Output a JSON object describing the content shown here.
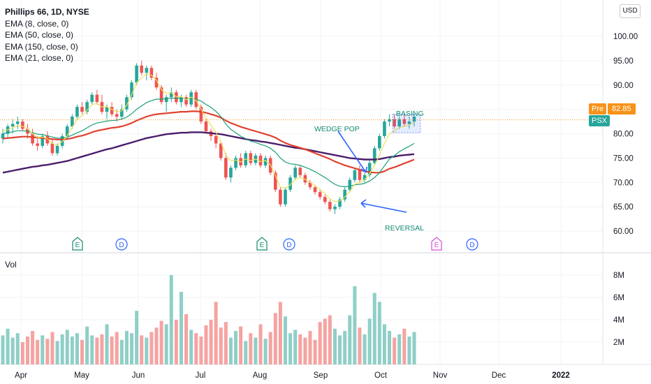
{
  "legend": {
    "title": "Phillips 66, 1D, NYSE",
    "indicators": [
      "EMA (8, close, 0)",
      "EMA (50, close, 0)",
      "EMA (150, close, 0)",
      "EMA (21, close, 0)"
    ]
  },
  "currency_button": "USD",
  "volume_label": "Vol",
  "price_tags": {
    "pre_label": "Pre",
    "pre_value": "82.85",
    "symbol": "PSX"
  },
  "colors": {
    "up": "#26a69a",
    "down": "#ef5350",
    "ema8": "#e9e25b",
    "ema21": "#1b9e77",
    "ema50": "#e0402f",
    "ema150": "#4b1d6b",
    "pre": "#f7931a",
    "symbol_tag": "#26a69a",
    "annotation_blue": "#2962ff"
  },
  "chart_data": {
    "type": "candlestick",
    "title": "Phillips 66, 1D, NYSE",
    "price_axis": {
      "ticks": [
        "100.00",
        "95.00",
        "90.00",
        "85.00",
        "80.00",
        "75.00",
        "70.00",
        "65.00",
        "60.00"
      ],
      "range": [
        57.5,
        102
      ]
    },
    "volume_axis": {
      "ticks": [
        "8M",
        "6M",
        "4M",
        "2M"
      ],
      "range": [
        0,
        9
      ]
    },
    "x_axis_labels": [
      "Apr",
      "May",
      "Jun",
      "Jul",
      "Aug",
      "Sep",
      "Oct",
      "Nov",
      "Dec",
      "2022"
    ],
    "grid": true,
    "annotations": [
      "BASING",
      "WEDGE POP",
      "REVERSAL"
    ],
    "event_markers": [
      "E",
      "D",
      "E",
      "D",
      "E",
      "D"
    ],
    "ohlc": [
      [
        79,
        81,
        78,
        80
      ],
      [
        80,
        82,
        79,
        81.5
      ],
      [
        81.5,
        83,
        80,
        82
      ],
      [
        82,
        83.5,
        81,
        82.5
      ],
      [
        82.5,
        83,
        80.5,
        81
      ],
      [
        81,
        82,
        79,
        80
      ],
      [
        80,
        81,
        77.5,
        78
      ],
      [
        78,
        79.5,
        76.5,
        77.5
      ],
      [
        77.5,
        80,
        77,
        79.5
      ],
      [
        79.5,
        80.5,
        77.5,
        78
      ],
      [
        78,
        79,
        75.5,
        76
      ],
      [
        76,
        78,
        75.5,
        77.5
      ],
      [
        77.5,
        80,
        77,
        79.5
      ],
      [
        79.5,
        82,
        79,
        81.5
      ],
      [
        81.5,
        84,
        81,
        83.5
      ],
      [
        83.5,
        86,
        83,
        85.5
      ],
      [
        85.5,
        86.5,
        84,
        84.5
      ],
      [
        84.5,
        87,
        84,
        86.5
      ],
      [
        86.5,
        88.5,
        86,
        88
      ],
      [
        88,
        89,
        86,
        86.5
      ],
      [
        86.5,
        88,
        84,
        84.5
      ],
      [
        84.5,
        86,
        83,
        85.5
      ],
      [
        85.5,
        86.5,
        83.5,
        84
      ],
      [
        84,
        85,
        82.5,
        83.5
      ],
      [
        83.5,
        86,
        83,
        85
      ],
      [
        85,
        88,
        84.5,
        87.5
      ],
      [
        87.5,
        91,
        87,
        90.5
      ],
      [
        90.5,
        94.5,
        90,
        94
      ],
      [
        94,
        95,
        92,
        92.5
      ],
      [
        92.5,
        94,
        91,
        93.5
      ],
      [
        93.5,
        94,
        91,
        91.5
      ],
      [
        91.5,
        92.5,
        89,
        89.5
      ],
      [
        89.5,
        90,
        86,
        86.5
      ],
      [
        86.5,
        88,
        84.5,
        87.5
      ],
      [
        87.5,
        89.5,
        86.5,
        88.5
      ],
      [
        88.5,
        89,
        86,
        86.5
      ],
      [
        86.5,
        88,
        85.5,
        87.5
      ],
      [
        87.5,
        88,
        85.5,
        86
      ],
      [
        86,
        89,
        85.5,
        88.5
      ],
      [
        88.5,
        89,
        85,
        85.5
      ],
      [
        85.5,
        86,
        82,
        82.5
      ],
      [
        82.5,
        83,
        80,
        80.5
      ],
      [
        80.5,
        81,
        78.5,
        79.5
      ],
      [
        79.5,
        80,
        77,
        78
      ],
      [
        78,
        78.5,
        74.5,
        75
      ],
      [
        75,
        76,
        70.5,
        71
      ],
      [
        71,
        73.5,
        70,
        73
      ],
      [
        73,
        75.5,
        72.5,
        75
      ],
      [
        75,
        76,
        73,
        73.5
      ],
      [
        73.5,
        76.5,
        73,
        76
      ],
      [
        76,
        76.5,
        73.5,
        74
      ],
      [
        74,
        76,
        73.5,
        75.5
      ],
      [
        75.5,
        76,
        73,
        73.5
      ],
      [
        73.5,
        75.5,
        73,
        75
      ],
      [
        75,
        75.5,
        71.5,
        72
      ],
      [
        72,
        72.5,
        68,
        68.5
      ],
      [
        68.5,
        69,
        65,
        65.5
      ],
      [
        65.5,
        69,
        65,
        68.5
      ],
      [
        68.5,
        71.5,
        68,
        71
      ],
      [
        71,
        73.5,
        70.5,
        73
      ],
      [
        73,
        73.5,
        71,
        71.5
      ],
      [
        71.5,
        72,
        69.5,
        70
      ],
      [
        70,
        70.5,
        68.5,
        69
      ],
      [
        69,
        69.5,
        67.5,
        68
      ],
      [
        68,
        68.5,
        66.5,
        67
      ],
      [
        67,
        67.5,
        65.5,
        66
      ],
      [
        66,
        66.5,
        64,
        64.5
      ],
      [
        64.5,
        65.5,
        63.5,
        65
      ],
      [
        65,
        67,
        64.5,
        66.5
      ],
      [
        66.5,
        69,
        66,
        68.5
      ],
      [
        68.5,
        71,
        68,
        70.5
      ],
      [
        70.5,
        73,
        70,
        72.5
      ],
      [
        72.5,
        73.5,
        70,
        70.5
      ],
      [
        70.5,
        72,
        70,
        71.5
      ],
      [
        71.5,
        74.5,
        71,
        74
      ],
      [
        74,
        77.5,
        73.5,
        77
      ],
      [
        77,
        80,
        76.5,
        79.5
      ],
      [
        79.5,
        83,
        79,
        82.5
      ],
      [
        82.5,
        84,
        81.5,
        83
      ],
      [
        83,
        84,
        81,
        81.5
      ],
      [
        81.5,
        83.5,
        81,
        83
      ],
      [
        83,
        84,
        81.5,
        82
      ],
      [
        82,
        83.5,
        81,
        82.5
      ],
      [
        82.5,
        84,
        81.5,
        83.5
      ]
    ],
    "volume_millions": [
      2.6,
      3.2,
      2.4,
      2.8,
      2.0,
      2.5,
      3.0,
      2.2,
      2.6,
      2.3,
      2.9,
      2.1,
      2.7,
      3.1,
      2.5,
      2.8,
      2.2,
      3.4,
      2.6,
      2.4,
      2.7,
      3.6,
      2.5,
      2.9,
      2.2,
      3.0,
      2.8,
      4.8,
      2.6,
      2.4,
      2.9,
      3.3,
      3.9,
      3.6,
      8.0,
      4.0,
      6.5,
      4.5,
      3.1,
      2.8,
      2.5,
      3.5,
      4.0,
      5.6,
      3.3,
      3.8,
      2.4,
      3.0,
      3.4,
      2.1,
      2.8,
      2.4,
      3.6,
      2.3,
      2.9,
      4.6,
      5.6,
      4.3,
      2.8,
      3.1,
      2.7,
      2.4,
      3.0,
      2.2,
      3.8,
      4.1,
      4.4,
      3.2,
      2.6,
      3.0,
      4.4,
      7.0,
      3.3,
      2.7,
      4.1,
      6.4,
      5.6,
      3.6,
      3.0,
      2.4,
      2.7,
      3.2,
      2.5,
      2.9
    ],
    "ema8": [
      80.5,
      80.8,
      81.3,
      81.6,
      81.5,
      81.0,
      80.0,
      79.2,
      79.3,
      79.0,
      78.0,
      77.6,
      78.4,
      79.6,
      81.3,
      83.0,
      83.7,
      84.8,
      86.0,
      86.2,
      85.5,
      85.5,
      85.0,
      84.5,
      84.7,
      85.8,
      88.0,
      90.5,
      91.5,
      92.3,
      92.0,
      91.0,
      89.0,
      88.3,
      88.4,
      87.6,
      87.6,
      87.0,
      87.5,
      86.8,
      85.0,
      83.2,
      81.7,
      80.3,
      78.3,
      75.6,
      74.5,
      74.6,
      74.2,
      74.8,
      74.5,
      74.8,
      74.3,
      74.5,
      73.6,
      71.4,
      69.0,
      68.8,
      69.5,
      70.7,
      71.0,
      70.6,
      70.0,
      69.3,
      68.5,
      67.7,
      66.6,
      66.0,
      66.2,
      67.0,
      68.1,
      69.6,
      70.0,
      70.5,
      71.8,
      73.5,
      75.6,
      78.0,
      80.0,
      80.5,
      81.3,
      81.5,
      81.8,
      82.4
    ],
    "ema21": [
      80,
      80.2,
      80.4,
      80.6,
      80.6,
      80.5,
      80.2,
      79.9,
      79.8,
      79.6,
      79.3,
      79.1,
      79.1,
      79.3,
      79.7,
      80.2,
      80.6,
      81.2,
      81.8,
      82.2,
      82.4,
      82.6,
      82.7,
      82.8,
      83.0,
      83.4,
      84.1,
      85.0,
      85.7,
      86.4,
      86.8,
      87.1,
      87.1,
      87.2,
      87.3,
      87.3,
      87.3,
      87.2,
      87.3,
      87.1,
      86.7,
      86.0,
      85.4,
      84.6,
      83.5,
      82.0,
      80.9,
      80.2,
      79.5,
      79.0,
      78.5,
      78.2,
      77.8,
      77.5,
      77.0,
      76.2,
      75.0,
      74.2,
      73.8,
      73.7,
      73.5,
      73.1,
      72.7,
      72.2,
      71.6,
      71.0,
      70.3,
      69.6,
      69.2,
      69.1,
      69.2,
      69.5,
      69.6,
      69.8,
      70.3,
      71.0,
      72.0,
      73.4,
      74.8,
      75.5,
      76.3,
      76.9,
      77.4,
      78.0
    ],
    "ema50": [
      79,
      79.1,
      79.2,
      79.3,
      79.4,
      79.4,
      79.3,
      79.2,
      79.1,
      79.0,
      78.9,
      78.8,
      78.8,
      78.9,
      79.1,
      79.4,
      79.6,
      79.9,
      80.3,
      80.6,
      80.8,
      81.0,
      81.2,
      81.3,
      81.5,
      81.8,
      82.2,
      82.7,
      83.1,
      83.5,
      83.8,
      84.0,
      84.1,
      84.2,
      84.3,
      84.4,
      84.5,
      84.5,
      84.6,
      84.6,
      84.5,
      84.3,
      84.0,
      83.7,
      83.3,
      82.7,
      82.2,
      81.8,
      81.4,
      81.1,
      80.8,
      80.5,
      80.2,
      79.9,
      79.6,
      79.2,
      78.6,
      78.1,
      77.7,
      77.4,
      77.1,
      76.8,
      76.4,
      76.0,
      75.6,
      75.2,
      74.8,
      74.3,
      73.9,
      73.5,
      73.2,
      72.9,
      72.6,
      72.3,
      72.1,
      72.0,
      72.0,
      72.3,
      72.8,
      73.1,
      73.5,
      73.9,
      74.3,
      74.7
    ],
    "ema150": [
      72,
      72.2,
      72.4,
      72.6,
      72.8,
      73.0,
      73.2,
      73.3,
      73.5,
      73.6,
      73.8,
      74.0,
      74.2,
      74.4,
      74.7,
      75.0,
      75.3,
      75.6,
      75.9,
      76.2,
      76.5,
      76.8,
      77.0,
      77.3,
      77.6,
      77.9,
      78.2,
      78.5,
      78.8,
      79.1,
      79.3,
      79.5,
      79.7,
      79.9,
      80.0,
      80.1,
      80.2,
      80.2,
      80.3,
      80.3,
      80.3,
      80.2,
      80.1,
      80.0,
      79.9,
      79.7,
      79.5,
      79.3,
      79.1,
      78.9,
      78.7,
      78.6,
      78.4,
      78.3,
      78.1,
      77.9,
      77.7,
      77.5,
      77.3,
      77.1,
      77.0,
      76.8,
      76.6,
      76.4,
      76.2,
      76.0,
      75.8,
      75.6,
      75.4,
      75.2,
      75.0,
      74.9,
      74.8,
      74.7,
      74.7,
      74.7,
      74.8,
      75.0,
      75.2,
      75.3,
      75.5,
      75.6,
      75.7,
      75.8
    ]
  }
}
